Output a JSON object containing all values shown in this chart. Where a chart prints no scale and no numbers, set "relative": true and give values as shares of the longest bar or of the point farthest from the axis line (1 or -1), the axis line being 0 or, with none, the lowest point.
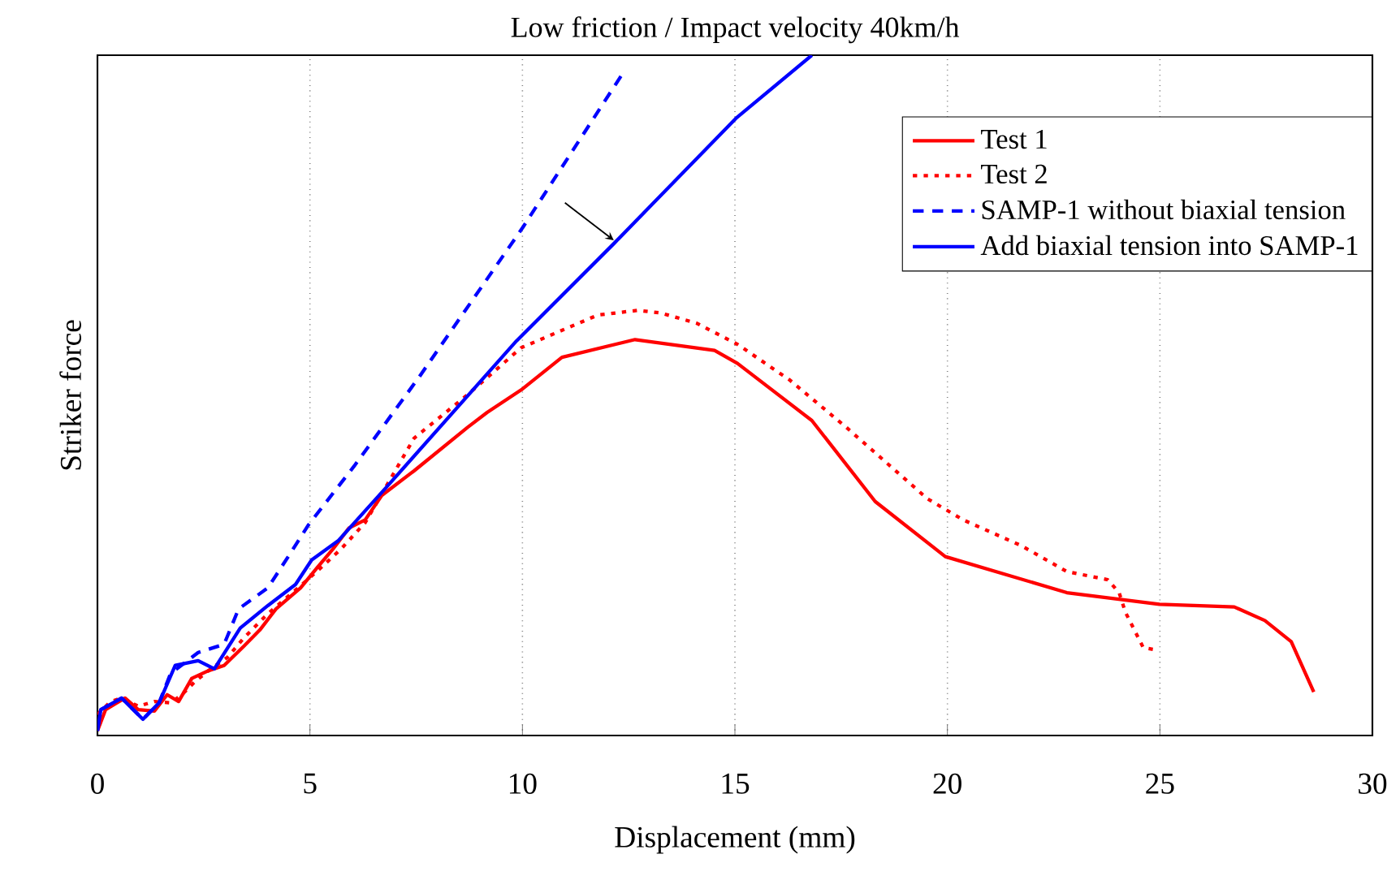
{
  "chart_data": {
    "type": "line",
    "title": "Low friction / Impact velocity 40km/h",
    "xlabel": "Displacement (mm)",
    "ylabel": "Striker force",
    "relative": true,
    "xlim": [
      0,
      30
    ],
    "xticks": [
      0,
      5,
      10,
      15,
      20,
      25,
      30
    ],
    "grid": "x",
    "legend": "top right",
    "marker": "none",
    "series": [
      {
        "name": "Test 1",
        "color": "#ff0000",
        "line_style": "solid",
        "x": [
          0,
          0.19,
          0.46,
          0.65,
          0.96,
          1.34,
          1.64,
          1.91,
          2.22,
          2.6,
          2.98,
          3.44,
          3.82,
          4.2,
          4.78,
          5.16,
          5.54,
          5.92,
          6.3,
          6.69,
          7.45,
          8.71,
          9.17,
          9.97,
          10.93,
          12.65,
          14.52,
          15.06,
          16.81,
          18.3,
          19.95,
          22.81,
          24.99,
          26.75,
          27.47,
          28.09,
          28.62
        ],
        "values": [
          0.007,
          0.038,
          0.048,
          0.055,
          0.038,
          0.036,
          0.06,
          0.05,
          0.084,
          0.095,
          0.103,
          0.131,
          0.155,
          0.186,
          0.217,
          0.246,
          0.274,
          0.305,
          0.317,
          0.353,
          0.389,
          0.453,
          0.475,
          0.508,
          0.556,
          0.582,
          0.566,
          0.547,
          0.463,
          0.344,
          0.263,
          0.21,
          0.193,
          0.189,
          0.169,
          0.138,
          0.064
        ]
      },
      {
        "name": "Test 2",
        "color": "#ff0000",
        "line_style": "dotted",
        "x": [
          0,
          0.31,
          0.57,
          0.96,
          1.34,
          1.72,
          1.99,
          2.29,
          2.67,
          3.06,
          3.44,
          4.01,
          4.59,
          5.16,
          5.73,
          6.3,
          7.45,
          8.71,
          9.97,
          11.77,
          12.72,
          13.26,
          14.1,
          15.06,
          16.28,
          17.62,
          19.53,
          20.37,
          21.74,
          22.81,
          23.77,
          24.04,
          24.19,
          24.61,
          24.91
        ],
        "values": [
          0.031,
          0.05,
          0.055,
          0.043,
          0.05,
          0.048,
          0.06,
          0.079,
          0.098,
          0.115,
          0.143,
          0.179,
          0.21,
          0.241,
          0.274,
          0.313,
          0.437,
          0.501,
          0.57,
          0.618,
          0.625,
          0.621,
          0.606,
          0.575,
          0.523,
          0.453,
          0.348,
          0.317,
          0.279,
          0.241,
          0.229,
          0.21,
          0.181,
          0.129,
          0.126
        ]
      },
      {
        "name": "SAMP-1 without biaxial tension",
        "color": "#0000ff",
        "line_style": "dashed",
        "x": [
          0,
          0.08,
          0.57,
          1.07,
          1.45,
          1.72,
          2.37,
          2.98,
          3.32,
          4.01,
          4.51,
          4.97,
          6.04,
          7.57,
          10.01,
          12.42
        ],
        "values": [
          0.007,
          0.038,
          0.055,
          0.024,
          0.048,
          0.091,
          0.122,
          0.134,
          0.186,
          0.217,
          0.265,
          0.31,
          0.396,
          0.527,
          0.747,
          0.979
        ]
      },
      {
        "name": "Add biaxial tension into SAMP-1",
        "color": "#0000ff",
        "line_style": "solid",
        "x": [
          0,
          0.08,
          0.57,
          1.07,
          1.45,
          1.83,
          2.37,
          2.75,
          3.36,
          4.01,
          4.66,
          5.04,
          5.66,
          6.8,
          9.86,
          12.15,
          15.02,
          16.81
        ],
        "values": [
          0.007,
          0.038,
          0.055,
          0.024,
          0.048,
          0.103,
          0.11,
          0.098,
          0.158,
          0.191,
          0.222,
          0.258,
          0.286,
          0.365,
          0.58,
          0.723,
          0.907,
          1.0
        ]
      }
    ]
  }
}
